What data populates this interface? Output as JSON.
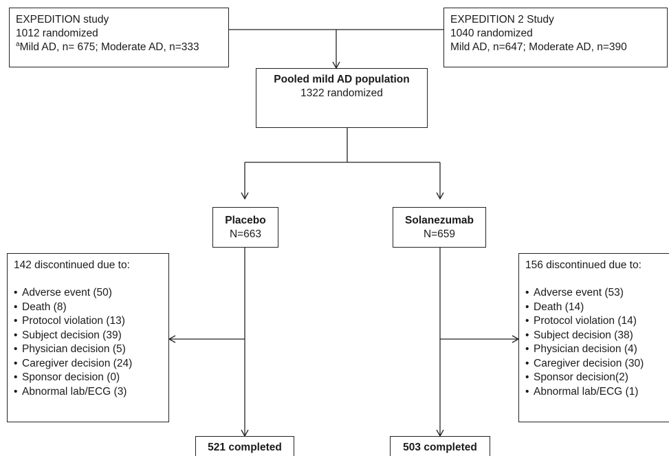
{
  "study1": {
    "title": "EXPEDITION study",
    "randomized": "1012 randomized",
    "footnote_mark": "a",
    "breakdown": "Mild AD, n= 675; Moderate AD, n=333"
  },
  "study2": {
    "title": "EXPEDITION 2 Study",
    "randomized": "1040 randomized",
    "breakdown": "Mild AD, n=647; Moderate AD, n=390"
  },
  "pooled": {
    "title": "Pooled mild AD population",
    "randomized": "1322 randomized"
  },
  "placebo": {
    "title": "Placebo",
    "n": "N=663"
  },
  "solanezumab": {
    "title": "Solanezumab",
    "n": "N=659"
  },
  "placebo_discontinued": {
    "header": "142 discontinued due to:",
    "reasons": [
      "Adverse event (50)",
      "Death (8)",
      "Protocol violation (13)",
      "Subject decision (39)",
      "Physician decision (5)",
      "Caregiver decision (24)",
      "Sponsor decision (0)",
      "Abnormal lab/ECG (3)"
    ]
  },
  "solanezumab_discontinued": {
    "header": "156 discontinued due to:",
    "reasons": [
      "Adverse event (53)",
      "Death (14)",
      "Protocol violation (14)",
      "Subject decision (38)",
      "Physician decision (4)",
      "Caregiver decision (30)",
      "Sponsor decision(2)",
      "Abnormal lab/ECG (1)"
    ]
  },
  "placebo_completed": "521 completed",
  "solanezumab_completed": "503 completed",
  "colors": {
    "line": "#222222",
    "text": "#1a1a1a"
  }
}
